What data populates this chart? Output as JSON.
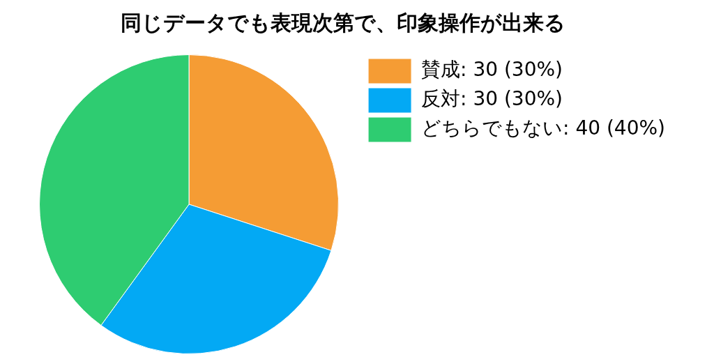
{
  "chart_data": {
    "type": "pie",
    "title": "同じデータでも表現次第で、印象操作が出来る",
    "categories": [
      "賛成",
      "反対",
      "どちらでもない"
    ],
    "values": [
      30,
      30,
      40
    ],
    "value_labels": [
      "30 (30%)",
      "30 (30%)",
      "40 (40%)"
    ],
    "colors": [
      "#f59c34",
      "#03a9f4",
      "#2ecc71"
    ],
    "legend": "top right"
  }
}
